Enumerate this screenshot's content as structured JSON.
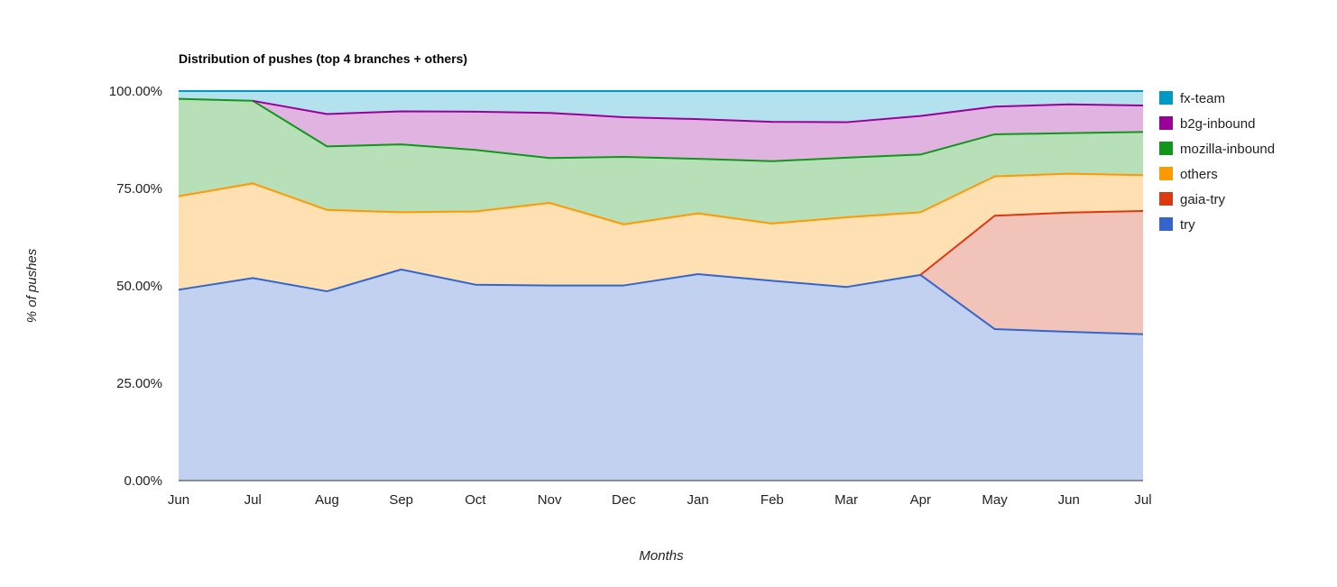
{
  "chart_data": {
    "type": "area",
    "stacked": true,
    "percent": true,
    "title": "Distribution of pushes (top 4 branches + others)",
    "xlabel": "Months",
    "ylabel": "% of pushes",
    "categories": [
      "Jun",
      "Jul",
      "Aug",
      "Sep",
      "Oct",
      "Nov",
      "Dec",
      "Jan",
      "Feb",
      "Mar",
      "Apr",
      "May",
      "Jun",
      "Jul"
    ],
    "yticks": [
      "0.00%",
      "25.00%",
      "50.00%",
      "75.00%",
      "100.00%"
    ],
    "ylim": [
      0,
      100
    ],
    "legend_position": "right",
    "series": [
      {
        "name": "try",
        "color": "#3366cc",
        "fill": "#c3d1f0",
        "values": [
          49.0,
          52.0,
          48.6,
          54.2,
          50.3,
          50.1,
          50.1,
          53.0,
          51.3,
          49.7,
          52.8,
          38.9,
          38.2,
          37.6
        ]
      },
      {
        "name": "gaia-try",
        "color": "#dc3912",
        "fill": "#f2c3b8",
        "values": [
          0,
          0,
          0,
          0,
          0,
          0,
          0,
          0,
          0,
          0,
          0,
          29.1,
          30.6,
          31.6
        ]
      },
      {
        "name": "others",
        "color": "#ff9900",
        "fill": "#ffe0b3",
        "values": [
          24.0,
          24.3,
          20.9,
          14.7,
          18.8,
          21.2,
          15.7,
          15.6,
          14.7,
          17.9,
          16.1,
          10.1,
          10.0,
          9.2
        ]
      },
      {
        "name": "mozilla-inbound",
        "color": "#109618",
        "fill": "#b7e0b9",
        "values": [
          25.0,
          21.2,
          16.3,
          17.4,
          15.8,
          11.5,
          17.3,
          14.0,
          16.0,
          15.3,
          14.8,
          10.8,
          10.4,
          11.1
        ]
      },
      {
        "name": "b2g-inbound",
        "color": "#990099",
        "fill": "#e1b3e1",
        "values": [
          0,
          0,
          8.3,
          8.5,
          9.8,
          11.6,
          10.2,
          10.2,
          10.1,
          9.1,
          9.9,
          7.1,
          7.4,
          6.8
        ]
      },
      {
        "name": "fx-team",
        "color": "#0099c6",
        "fill": "#b3e1ee",
        "values": [
          2.0,
          2.5,
          5.9,
          5.2,
          5.3,
          5.6,
          6.7,
          7.2,
          7.9,
          8.0,
          6.4,
          4.0,
          3.4,
          3.7
        ]
      }
    ],
    "legend_order": [
      "fx-team",
      "b2g-inbound",
      "mozilla-inbound",
      "others",
      "gaia-try",
      "try"
    ]
  }
}
